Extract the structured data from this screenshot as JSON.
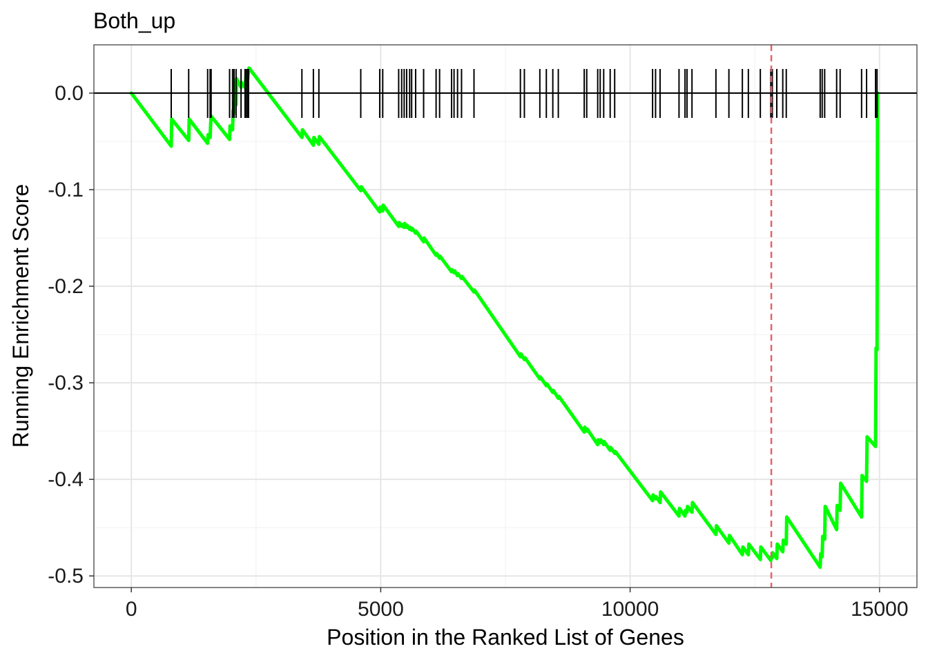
{
  "chart_data": {
    "type": "line",
    "title": "Both_up",
    "xlabel": "Position in the Ranked List of Genes",
    "ylabel": "Running Enrichment Score",
    "xlim": [
      -750,
      15750
    ],
    "ylim": [
      -0.512,
      0.05
    ],
    "x_ticks": [
      0,
      5000,
      10000,
      15000
    ],
    "x_tick_labels": [
      "0",
      "5000",
      "10000",
      "15000"
    ],
    "y_ticks": [
      0.0,
      -0.1,
      -0.2,
      -0.3,
      -0.4,
      -0.5
    ],
    "y_tick_labels": [
      "0.0",
      "-0.1",
      "-0.2",
      "-0.3",
      "-0.4",
      "-0.5"
    ],
    "grid": true,
    "series": [
      {
        "color": "#00ff00",
        "x": [
          0,
          800,
          810,
          1150,
          1160,
          1530,
          1540,
          1580,
          1590,
          1600,
          1970,
          1980,
          2030,
          2040,
          2060,
          2070,
          2100,
          2110,
          2200,
          2210,
          2280,
          2290,
          2300,
          2320,
          2330,
          2350,
          2360,
          3420,
          3430,
          3650,
          3660,
          3760,
          3770,
          4600,
          4610,
          4980,
          4990,
          5040,
          5050,
          5360,
          5370,
          5420,
          5430,
          5470,
          5480,
          5520,
          5530,
          5580,
          5590,
          5620,
          5630,
          5700,
          5710,
          5860,
          5870,
          6110,
          6120,
          6180,
          6190,
          6420,
          6430,
          6470,
          6480,
          6540,
          6550,
          6620,
          6630,
          6870,
          6880,
          7800,
          7810,
          7880,
          7890,
          8190,
          8200,
          8320,
          8330,
          8450,
          8460,
          8560,
          8570,
          9080,
          9090,
          9130,
          9140,
          9350,
          9360,
          9400,
          9410,
          9470,
          9480,
          9600,
          9610,
          9690,
          9700,
          10450,
          10460,
          10510,
          10520,
          10600,
          10610,
          10980,
          10990,
          11100,
          11110,
          11140,
          11150,
          11240,
          11250,
          11720,
          11730,
          11980,
          11990,
          12250,
          12260,
          12370,
          12380,
          12610,
          12620,
          12820,
          12830,
          12850,
          12860,
          12940,
          12950,
          13060,
          13070,
          13130,
          13140,
          13810,
          13820,
          13850,
          13860,
          13900,
          13910,
          14140,
          14150,
          14210,
          14220,
          14640,
          14650,
          14740,
          14750,
          14920,
          14930,
          14950,
          14960
        ],
        "values": [
          0.0,
          -0.055,
          -0.027,
          -0.049,
          -0.027,
          -0.052,
          -0.043,
          -0.046,
          -0.033,
          -0.024,
          -0.048,
          -0.034,
          -0.038,
          -0.018,
          -0.021,
          -0.01,
          -0.012,
          0.015,
          0.006,
          0.011,
          0.006,
          0.01,
          0.018,
          0.016,
          0.013,
          0.024,
          0.026,
          -0.046,
          -0.038,
          -0.054,
          -0.046,
          -0.053,
          -0.045,
          -0.101,
          -0.097,
          -0.123,
          -0.118,
          -0.122,
          -0.116,
          -0.138,
          -0.134,
          -0.138,
          -0.136,
          -0.139,
          -0.135,
          -0.139,
          -0.137,
          -0.141,
          -0.139,
          -0.142,
          -0.14,
          -0.145,
          -0.143,
          -0.154,
          -0.15,
          -0.168,
          -0.166,
          -0.171,
          -0.169,
          -0.185,
          -0.183,
          -0.186,
          -0.184,
          -0.189,
          -0.187,
          -0.192,
          -0.19,
          -0.206,
          -0.204,
          -0.273,
          -0.27,
          -0.276,
          -0.274,
          -0.296,
          -0.294,
          -0.303,
          -0.301,
          -0.31,
          -0.308,
          -0.316,
          -0.314,
          -0.351,
          -0.346,
          -0.35,
          -0.348,
          -0.364,
          -0.359,
          -0.362,
          -0.359,
          -0.364,
          -0.361,
          -0.37,
          -0.367,
          -0.373,
          -0.371,
          -0.422,
          -0.416,
          -0.42,
          -0.418,
          -0.424,
          -0.413,
          -0.438,
          -0.43,
          -0.438,
          -0.432,
          -0.434,
          -0.428,
          -0.434,
          -0.424,
          -0.457,
          -0.448,
          -0.466,
          -0.458,
          -0.478,
          -0.47,
          -0.478,
          -0.467,
          -0.483,
          -0.47,
          -0.484,
          -0.48,
          -0.481,
          -0.476,
          -0.482,
          -0.467,
          -0.475,
          -0.463,
          -0.467,
          -0.439,
          -0.491,
          -0.477,
          -0.48,
          -0.459,
          -0.462,
          -0.428,
          -0.452,
          -0.427,
          -0.432,
          -0.404,
          -0.439,
          -0.396,
          -0.402,
          -0.356,
          -0.366,
          -0.264,
          -0.266,
          0.0
        ]
      }
    ],
    "gene_hits": [
      800,
      1150,
      1530,
      1580,
      1600,
      1970,
      2030,
      2060,
      2100,
      2200,
      2280,
      2300,
      2330,
      2350,
      3420,
      3650,
      3760,
      4600,
      4980,
      5040,
      5360,
      5420,
      5470,
      5520,
      5580,
      5620,
      5700,
      5860,
      6110,
      6180,
      6420,
      6470,
      6540,
      6620,
      6870,
      7800,
      7880,
      8190,
      8320,
      8450,
      8560,
      9080,
      9130,
      9350,
      9400,
      9470,
      9600,
      9690,
      10450,
      10510,
      10600,
      10980,
      11100,
      11140,
      11240,
      11720,
      11980,
      12250,
      12370,
      12610,
      12820,
      12850,
      12940,
      13060,
      13130,
      13810,
      13850,
      13900,
      14140,
      14210,
      14640,
      14740,
      14920,
      14950
    ],
    "reference_line": {
      "y": 0.0,
      "color": "#000000"
    },
    "vertical_marker": {
      "x": 12830,
      "color": "#e5616a",
      "style": "dashed"
    }
  }
}
